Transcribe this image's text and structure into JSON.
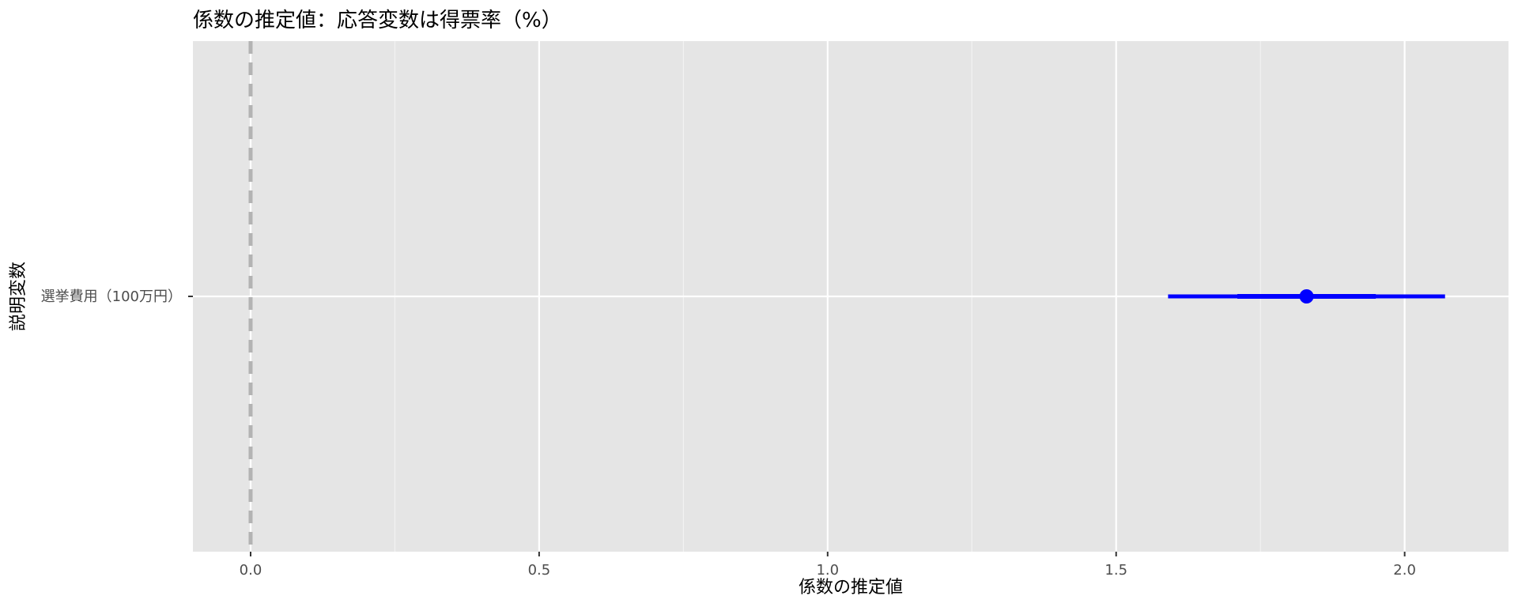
{
  "chart_data": {
    "type": "coefficient-plot",
    "title": "係数の推定値：応答変数は得票率（%）",
    "xlabel": "係数の推定値",
    "ylabel": "説明変数",
    "xlim": [
      -0.1,
      2.18
    ],
    "x_ticks": [
      0.0,
      0.5,
      1.0,
      1.5,
      2.0
    ],
    "x_tick_labels": [
      "0.0",
      "0.5",
      "1.0",
      "1.5",
      "2.0"
    ],
    "reference_line": {
      "x": 0,
      "style": "dashed",
      "color": "#b3b3b3"
    },
    "grid": true,
    "legend": "none",
    "series": [
      {
        "label": "選挙費用（100万円）",
        "estimate": 1.83,
        "ci_inner": [
          1.71,
          1.95
        ],
        "ci_outer": [
          1.59,
          2.07
        ],
        "color": "#0000ff"
      }
    ]
  },
  "colors": {
    "panel_background": "#e5e5e5",
    "grid_major": "#ffffff",
    "grid_minor": "#f2f2f2",
    "tick_text": "#4d4d4d",
    "point": "#0000ff"
  }
}
